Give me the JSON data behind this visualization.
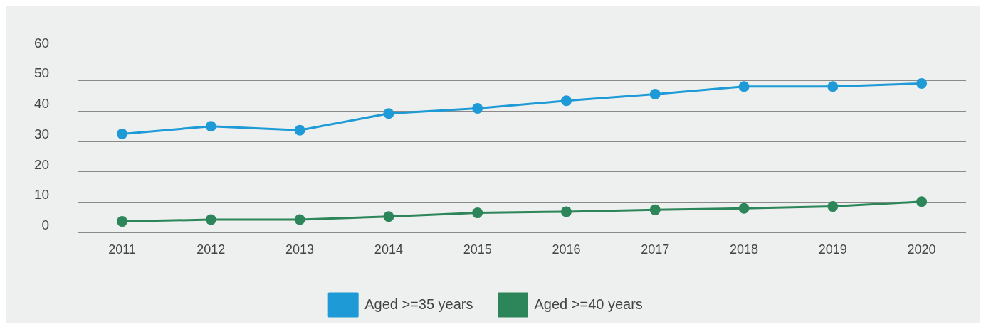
{
  "chart_data": {
    "type": "line",
    "categories": [
      "2011",
      "2012",
      "2013",
      "2014",
      "2015",
      "2016",
      "2017",
      "2018",
      "2019",
      "2020"
    ],
    "series": [
      {
        "name": "Aged >=35 years",
        "color": "#1e9ad6",
        "values": [
          32.5,
          35,
          33.7,
          39.2,
          40.9,
          43.4,
          45.6,
          48.1,
          48.1,
          49.1
        ]
      },
      {
        "name": "Aged >=40 years",
        "color": "#2d8659",
        "values": [
          3.7,
          4.3,
          4.3,
          5.3,
          6.5,
          6.9,
          7.5,
          8,
          8.6,
          10.2
        ]
      }
    ],
    "ylim": [
      0,
      60
    ],
    "yticks": [
      0,
      10,
      20,
      30,
      40,
      50,
      60
    ],
    "grid": "y",
    "legend": "bottom",
    "marker": "circle",
    "line_style": "solid"
  }
}
